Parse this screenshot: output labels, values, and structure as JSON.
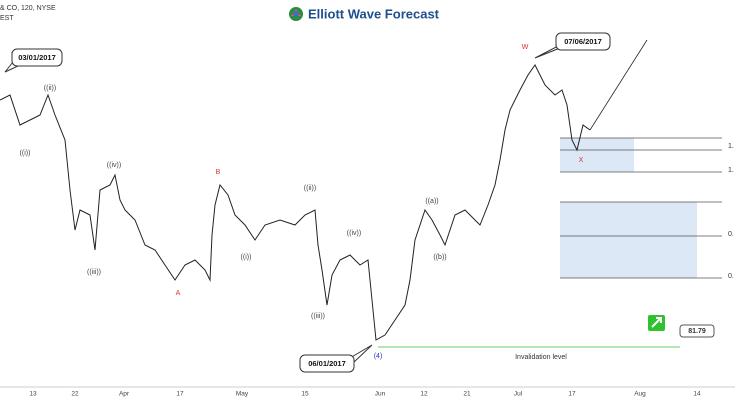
{
  "header": {
    "symbol": "& CO, 120, NYSE",
    "suffix": "EST",
    "logo": "Elliott Wave Forecast"
  },
  "callouts": [
    "03/01/2017",
    "07/06/2017",
    "06/01/2017"
  ],
  "wave_labels": [
    "((i))",
    "((ii))",
    "((iii))",
    "((iv))",
    "A",
    "B",
    "((i))",
    "((ii))",
    "((iii))",
    "((iv))",
    "(4)",
    "((a))",
    "((b))",
    "W",
    "X"
  ],
  "x_axis": [
    "13",
    "22",
    "Apr",
    "17",
    "May",
    "15",
    "Jun",
    "12",
    "21",
    "Jul",
    "17",
    "Aug",
    "14"
  ],
  "invalidation": "Invalidation level",
  "price_label": "81.79",
  "right_labels": [
    "1.",
    "1.",
    "0.",
    "0."
  ]
}
